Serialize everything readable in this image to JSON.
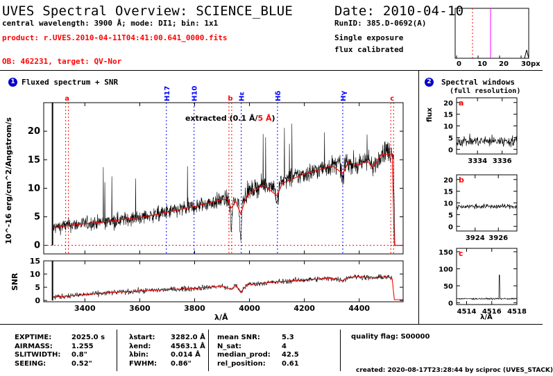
{
  "header": {
    "title": "UVES Spectral Overview: SCIENCE_BLUE",
    "central_line": "central wavelength: 3900 Å; mode: DI1; bin: 1x1",
    "product": "product: r.UVES.2010-04-11T04:41:00.641_0000.fits",
    "ob": "OB: 462231, target: QV-Nor",
    "date": "Date: 2010-04-10",
    "runid": "RunID: 385.D-0692(A)",
    "exposure": "Single exposure",
    "calibration": "flux calibrated"
  },
  "thumbnail": {
    "ticks": [
      "0",
      "10",
      "20",
      "30"
    ],
    "unit": "px",
    "marker_colors": [
      "#ff0000",
      "#ff00ff"
    ]
  },
  "panel1": {
    "number": "1",
    "title": "Fluxed spectrum + SNR",
    "ylabel": "10^-16 erg/cm^2/Angstrom/s",
    "snr_label": "SNR",
    "xlabel": "λ/Å",
    "legend_prefix": "extracted (0.1 Å/",
    "legend_red": "5 Å",
    "legend_suffix": ")"
  },
  "panel2": {
    "number": "2",
    "title": "Spectral windows",
    "subtitle": "(full resolution)",
    "ylabel": "flux",
    "xlabel": "λ/Å"
  },
  "footer": {
    "col1": [
      [
        "EXPTIME:",
        "2025.0 s"
      ],
      [
        "AIRMASS:",
        "1.255"
      ],
      [
        "SLITWIDTH:",
        "0.8\""
      ],
      [
        "SEEING:",
        "0.52\""
      ]
    ],
    "col2": [
      [
        "λstart:",
        "3282.0 Å"
      ],
      [
        "λend:",
        "4563.1 Å"
      ],
      [
        "λbin:",
        "0.014 Å"
      ],
      [
        "FWHM:",
        "0.86\""
      ]
    ],
    "col3": [
      [
        "mean SNR:",
        "5.3"
      ],
      [
        "N_sat:",
        "4"
      ],
      [
        "median_prod:",
        "42.5"
      ],
      [
        "rel_position:",
        "0.61"
      ]
    ],
    "quality": "quality flag: S00000",
    "created": "created: 2020-08-17T23:28:44 by sciproc (UVES_STACK)"
  },
  "colors": {
    "spectrum": "#000000",
    "smoothed": "#ff0000",
    "balmer": "#0000ff",
    "window_marker": "#ff0000"
  },
  "chart_data": [
    {
      "type": "line",
      "id": "flux",
      "xlabel": "λ/Å",
      "ylabel": "10^-16 erg/cm^2/Angstrom/s",
      "xlim": [
        3250,
        4560
      ],
      "ylim": [
        -1.5,
        25
      ],
      "x_ticks": [
        3400,
        3600,
        3800,
        4000,
        4200,
        4400
      ],
      "y_ticks": [
        0,
        5,
        10,
        15,
        20
      ],
      "series": [
        {
          "name": "extracted",
          "step": 0.1,
          "x": [
            3282,
            3300,
            3320,
            3340,
            3360,
            3380,
            3400,
            3450,
            3500,
            3550,
            3600,
            3650,
            3700,
            3750,
            3800,
            3850,
            3880,
            3900,
            3920,
            3930,
            3933,
            3940,
            3960,
            3968,
            3975,
            4000,
            4050,
            4090,
            4101,
            4110,
            4150,
            4200,
            4250,
            4300,
            4330,
            4340,
            4350,
            4380,
            4400,
            4430,
            4450,
            4480,
            4500,
            4510,
            4520,
            4525,
            4530,
            4560
          ],
          "y": [
            3.0,
            3.2,
            3.4,
            3.5,
            3.6,
            3.7,
            3.8,
            4.0,
            4.3,
            4.6,
            4.9,
            5.3,
            5.8,
            6.3,
            6.8,
            7.4,
            7.7,
            8.0,
            8.2,
            6.5,
            2.2,
            7.5,
            7.8,
            0.5,
            8.5,
            9.5,
            10.6,
            10.5,
            7.0,
            11.0,
            11.8,
            12.5,
            13.2,
            14.0,
            14.3,
            11.0,
            14.6,
            14.3,
            13.8,
            15.5,
            13.2,
            16.4,
            16.8,
            16.1,
            16.2,
            15.8,
            0.0,
            0.0
          ]
        },
        {
          "name": "5 Å",
          "step": 5,
          "x": [
            3282,
            3300,
            3340,
            3400,
            3450,
            3500,
            3550,
            3600,
            3650,
            3700,
            3750,
            3800,
            3850,
            3900,
            3920,
            3933,
            3950,
            3968,
            3990,
            4050,
            4101,
            4120,
            4200,
            4250,
            4300,
            4340,
            4360,
            4400,
            4430,
            4450,
            4480,
            4520,
            4528,
            4560
          ],
          "y": [
            3.0,
            3.2,
            3.5,
            3.8,
            4.0,
            4.3,
            4.6,
            4.9,
            5.3,
            5.8,
            6.3,
            6.8,
            7.4,
            8.0,
            8.1,
            6.5,
            7.7,
            5.5,
            8.7,
            10.6,
            8.7,
            10.9,
            12.5,
            13.2,
            14.0,
            12.6,
            14.5,
            14.1,
            14.8,
            13.6,
            15.9,
            16.0,
            0.0,
            0.0
          ]
        }
      ],
      "annotations": [
        {
          "label": "a",
          "x": 3330,
          "color": "#ff0000"
        },
        {
          "label": "b",
          "x": 3925,
          "color": "#ff0000"
        },
        {
          "label": "c",
          "x": 4515,
          "color": "#ff0000"
        },
        {
          "label": "H17",
          "x": 3697,
          "color": "#0000ff"
        },
        {
          "label": "H10",
          "x": 3798,
          "color": "#0000ff"
        },
        {
          "label": "Hε",
          "x": 3970,
          "color": "#0000ff"
        },
        {
          "label": "Hδ",
          "x": 4102,
          "color": "#0000ff"
        },
        {
          "label": "Hγ",
          "x": 4340,
          "color": "#0000ff"
        }
      ]
    },
    {
      "type": "line",
      "id": "snr",
      "xlabel": "λ/Å",
      "ylabel": "SNR",
      "xlim": [
        3250,
        4560
      ],
      "ylim": [
        -0.5,
        15
      ],
      "x_ticks": [
        3400,
        3600,
        3800,
        4000,
        4200,
        4400
      ],
      "y_ticks": [
        0,
        5,
        10,
        15
      ],
      "series": [
        {
          "name": "extracted",
          "x": [
            3282,
            3300,
            3400,
            3500,
            3600,
            3700,
            3800,
            3900,
            3933,
            3950,
            3968,
            3990,
            4000,
            4100,
            4200,
            4300,
            4340,
            4360,
            4400,
            4450,
            4500,
            4520,
            4528,
            4560
          ],
          "y": [
            1.2,
            1.4,
            2.2,
            3.0,
            3.6,
            4.1,
            4.6,
            5.4,
            4.2,
            5.8,
            3.0,
            6.0,
            6.1,
            7.0,
            7.8,
            8.4,
            7.6,
            8.8,
            9.0,
            8.5,
            9.0,
            8.3,
            0.3,
            0.3
          ]
        }
      ]
    },
    {
      "type": "line",
      "id": "window-a",
      "xlabel": "",
      "ylabel": "flux",
      "xlim": [
        3332.3,
        3337.2
      ],
      "ylim": [
        -2,
        22
      ],
      "x_ticks": [
        3334,
        3336
      ],
      "y_ticks": [
        0,
        5,
        10,
        15,
        20
      ],
      "series": [
        {
          "name": "a",
          "level": 3.5,
          "scatter": 2.2
        }
      ]
    },
    {
      "type": "line",
      "id": "window-b",
      "xlabel": "",
      "ylabel": "flux",
      "xlim": [
        3922.4,
        3927.6
      ],
      "ylim": [
        -2,
        22
      ],
      "x_ticks": [
        3924,
        3926
      ],
      "y_ticks": [
        0,
        5,
        10,
        15,
        20
      ],
      "series": [
        {
          "name": "b",
          "level": 8.5,
          "scatter": 1.0
        }
      ]
    },
    {
      "type": "line",
      "id": "window-c",
      "xlabel": "λ/Å",
      "ylabel": "flux",
      "xlim": [
        4513.2,
        4518.0
      ],
      "ylim": [
        -5,
        160
      ],
      "x_ticks": [
        4514,
        4516,
        4518
      ],
      "y_ticks": [
        0,
        50,
        100,
        150
      ],
      "series": [
        {
          "name": "c",
          "level": 12,
          "scatter": 2.0,
          "spike_x": 4516.6,
          "spike_y": 82
        }
      ]
    }
  ]
}
